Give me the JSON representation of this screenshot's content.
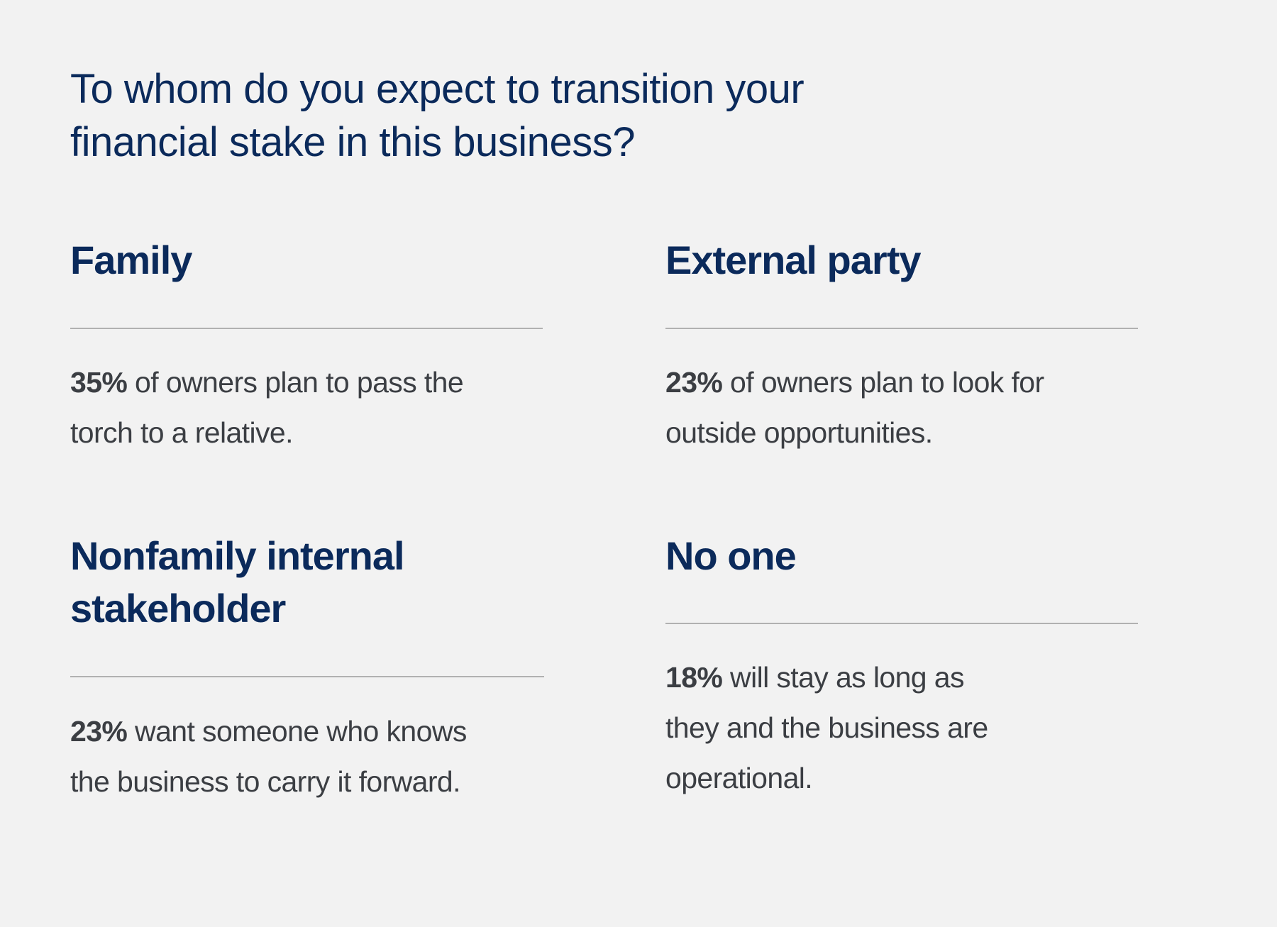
{
  "title": {
    "lines": [
      "To whom do you expect to transition your",
      "financial stake in this business?"
    ]
  },
  "items": [
    {
      "heading": [
        "Family"
      ],
      "stat": "35%",
      "text": [
        " of owners plan to pass the",
        "torch to a relative."
      ]
    },
    {
      "heading": [
        "External party"
      ],
      "stat": "23%",
      "text": [
        " of owners plan to look for",
        "outside opportunities."
      ]
    },
    {
      "heading": [
        "Nonfamily internal",
        "stakeholder"
      ],
      "stat": "23%",
      "text": [
        " want someone who knows",
        "the business to carry it forward."
      ]
    },
    {
      "heading": [
        "No one"
      ],
      "stat": "18%",
      "text": [
        " will stay as long as",
        "they and the business are",
        "operational."
      ]
    }
  ],
  "colors": {
    "heading": "#0b2a5b",
    "body": "#3b3e43",
    "rule": "#b1b1b1",
    "background": "#f2f2f2"
  }
}
